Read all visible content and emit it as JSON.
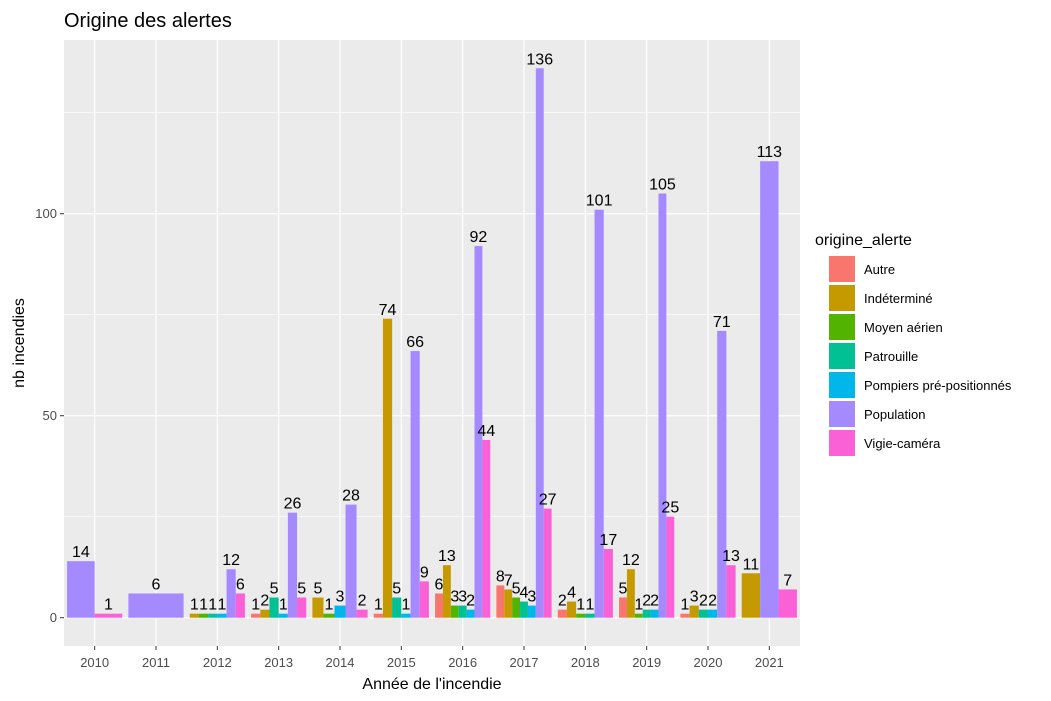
{
  "chart_data": {
    "type": "bar",
    "title": "Origine des alertes",
    "xlabel": "Année de l'incendie",
    "ylabel": "nb incendies",
    "ylim": [
      -7,
      143
    ],
    "yticks": [
      0,
      50,
      100
    ],
    "grid": true,
    "legend_position": "right",
    "legend_title": "origine_alerte",
    "categories": [
      "2010",
      "2011",
      "2012",
      "2013",
      "2014",
      "2015",
      "2016",
      "2017",
      "2018",
      "2019",
      "2020",
      "2021"
    ],
    "series": [
      {
        "name": "Autre",
        "color": "#F8766D"
      },
      {
        "name": "Indéterminé",
        "color": "#C49A00"
      },
      {
        "name": "Moyen aérien",
        "color": "#53B400"
      },
      {
        "name": "Patrouille",
        "color": "#00C094"
      },
      {
        "name": "Pompiers pré-positionnés",
        "color": "#00B6EB"
      },
      {
        "name": "Population",
        "color": "#A58AFF"
      },
      {
        "name": "Vigie-caméra",
        "color": "#FB61D7"
      }
    ],
    "groups": [
      {
        "year": "2010",
        "bars": [
          {
            "s": 5,
            "v": 14
          },
          {
            "s": 6,
            "v": 1
          }
        ]
      },
      {
        "year": "2011",
        "bars": [
          {
            "s": 5,
            "v": 6
          }
        ]
      },
      {
        "year": "2012",
        "bars": [
          {
            "s": 1,
            "v": 1
          },
          {
            "s": 2,
            "v": 1
          },
          {
            "s": 3,
            "v": 1
          },
          {
            "s": 4,
            "v": 1
          },
          {
            "s": 5,
            "v": 12
          },
          {
            "s": 6,
            "v": 6
          }
        ]
      },
      {
        "year": "2013",
        "bars": [
          {
            "s": 0,
            "v": 1
          },
          {
            "s": 1,
            "v": 2
          },
          {
            "s": 3,
            "v": 5
          },
          {
            "s": 4,
            "v": 1
          },
          {
            "s": 5,
            "v": 26
          },
          {
            "s": 6,
            "v": 5
          }
        ]
      },
      {
        "year": "2014",
        "bars": [
          {
            "s": 1,
            "v": 5
          },
          {
            "s": 2,
            "v": 1
          },
          {
            "s": 4,
            "v": 3
          },
          {
            "s": 5,
            "v": 28
          },
          {
            "s": 6,
            "v": 2
          }
        ]
      },
      {
        "year": "2015",
        "bars": [
          {
            "s": 0,
            "v": 1
          },
          {
            "s": 1,
            "v": 74
          },
          {
            "s": 3,
            "v": 5
          },
          {
            "s": 4,
            "v": 1
          },
          {
            "s": 5,
            "v": 66
          },
          {
            "s": 6,
            "v": 9
          }
        ]
      },
      {
        "year": "2016",
        "bars": [
          {
            "s": 0,
            "v": 6
          },
          {
            "s": 1,
            "v": 13
          },
          {
            "s": 2,
            "v": 3
          },
          {
            "s": 3,
            "v": 3
          },
          {
            "s": 4,
            "v": 2
          },
          {
            "s": 5,
            "v": 92
          },
          {
            "s": 6,
            "v": 44
          }
        ]
      },
      {
        "year": "2017",
        "bars": [
          {
            "s": 0,
            "v": 8
          },
          {
            "s": 1,
            "v": 7
          },
          {
            "s": 2,
            "v": 5
          },
          {
            "s": 3,
            "v": 4
          },
          {
            "s": 4,
            "v": 3
          },
          {
            "s": 5,
            "v": 136
          },
          {
            "s": 6,
            "v": 27
          }
        ]
      },
      {
        "year": "2018",
        "bars": [
          {
            "s": 0,
            "v": 2
          },
          {
            "s": 1,
            "v": 4
          },
          {
            "s": 2,
            "v": 1
          },
          {
            "s": 3,
            "v": 1
          },
          {
            "s": 5,
            "v": 101
          },
          {
            "s": 6,
            "v": 17
          }
        ]
      },
      {
        "year": "2019",
        "bars": [
          {
            "s": 0,
            "v": 5
          },
          {
            "s": 1,
            "v": 12
          },
          {
            "s": 2,
            "v": 1
          },
          {
            "s": 3,
            "v": 2
          },
          {
            "s": 4,
            "v": 2
          },
          {
            "s": 5,
            "v": 105
          },
          {
            "s": 6,
            "v": 25
          }
        ]
      },
      {
        "year": "2020",
        "bars": [
          {
            "s": 0,
            "v": 1
          },
          {
            "s": 1,
            "v": 3
          },
          {
            "s": 3,
            "v": 2
          },
          {
            "s": 4,
            "v": 2
          },
          {
            "s": 5,
            "v": 71
          },
          {
            "s": 6,
            "v": 13
          }
        ]
      },
      {
        "year": "2021",
        "bars": [
          {
            "s": 1,
            "v": 11
          },
          {
            "s": 5,
            "v": 113
          },
          {
            "s": 6,
            "v": 7
          }
        ]
      }
    ]
  }
}
